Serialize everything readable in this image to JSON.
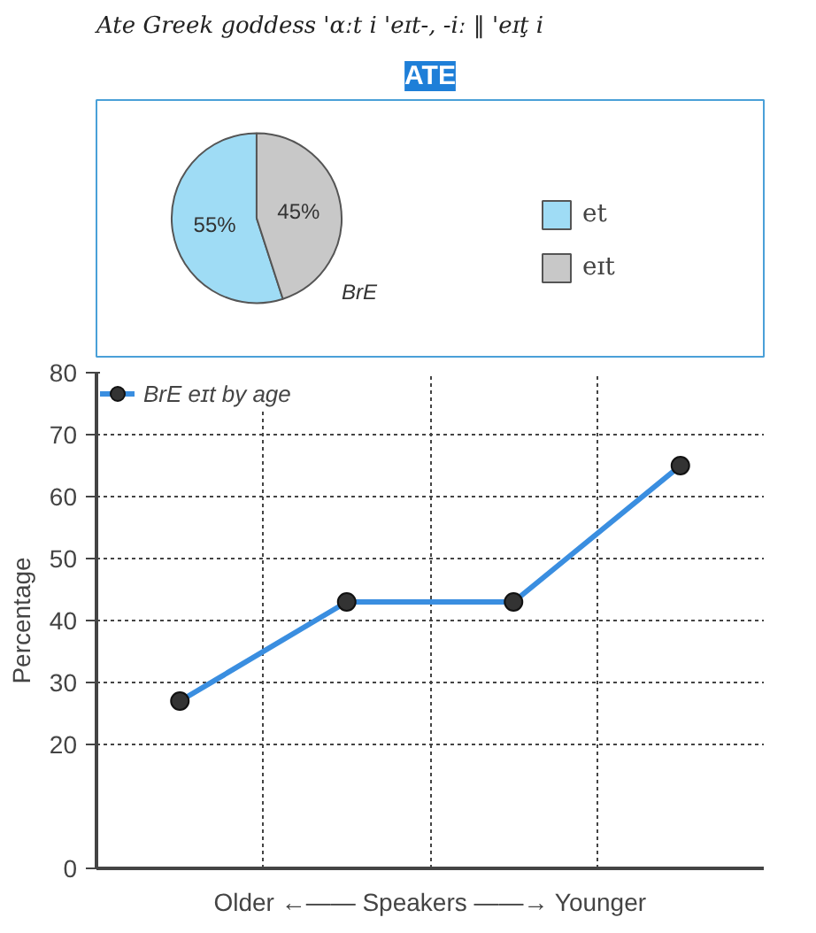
{
  "chart_data": [
    {
      "type": "pie",
      "title": "ATE",
      "annotations": [
        "Ate Greek goddess 'ɑːt i 'eɪt-, -iː ‖ 'eɪţ i",
        "BrE"
      ],
      "categories": [
        "et",
        "eɪt"
      ],
      "values": [
        55,
        45
      ],
      "colors": [
        "#9fdcf5",
        "#c8c8c8"
      ],
      "value_labels": [
        "55%",
        "45%"
      ],
      "legend": "right"
    },
    {
      "type": "line",
      "ylabel": "Percentage",
      "xlabel": "Older ←—— Speakers ——→ Younger",
      "categories": [
        null,
        null,
        null,
        null
      ],
      "series": [
        {
          "name": "BrE eɪt by age",
          "color": "#3a8ee0",
          "values": [
            27,
            43,
            43,
            65
          ]
        }
      ],
      "ylim": [
        0,
        80
      ],
      "yticks": [
        0,
        20,
        30,
        40,
        50,
        60,
        70,
        80
      ],
      "grid": true,
      "legend": "top left",
      "marker": "circle"
    }
  ]
}
